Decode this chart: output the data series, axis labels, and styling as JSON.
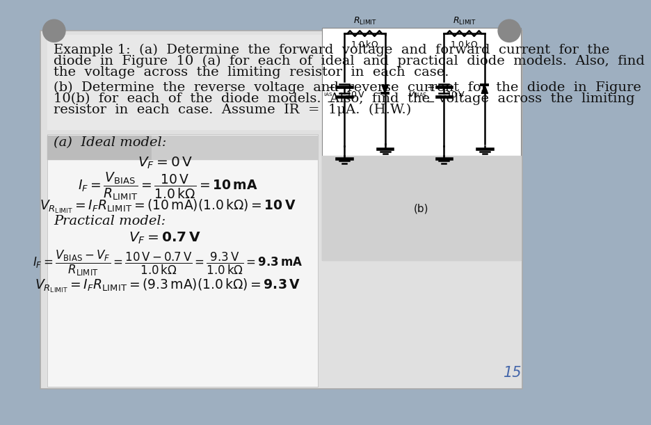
{
  "bg_color": "#9eafc0",
  "paper_color": "#e0e0e0",
  "white_color": "#ffffff",
  "light_grey": "#d0d0d0",
  "text_color": "#111111",
  "page_num": "15",
  "main_font_size": 14.0,
  "formula_font_size": 13.5,
  "line1": "Example 1:  (a)  Determine  the  forward  voltage  and  forward  current  for  the",
  "line2": "diode  in  Figure  10  (a)  for  each  of  ideal  and  practical  diode  models.  Also,  find",
  "line3": "the  voltage  across  the  limiting  resistor  in  each  case.",
  "line4": "(b)  Determine  the  reverse  voltage  and  reverse  current  for  the  diode  in  Figure",
  "line5": "10(b)  for  each  of  the  diode  models.  Also,  find  the  voltage  across  the  limiting",
  "line6": "resistor  in  each  case.  Assume  IR  =  1μA.  (H.W.)"
}
